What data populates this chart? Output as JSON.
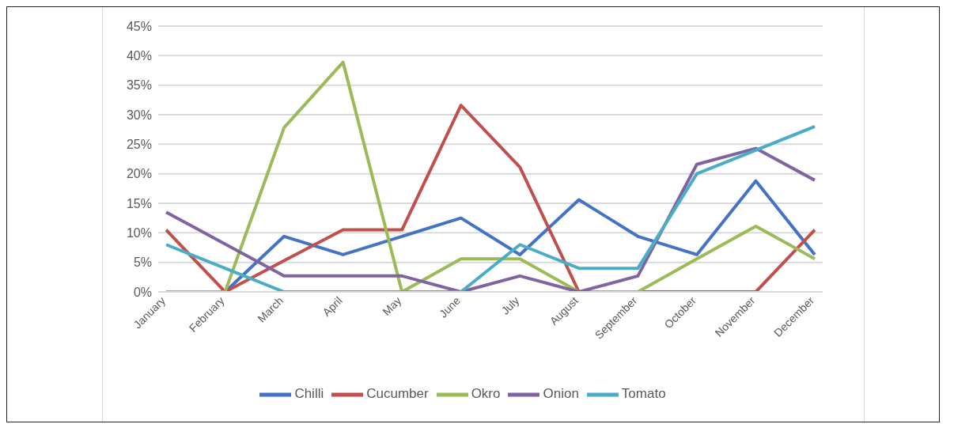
{
  "chart_data": {
    "type": "line",
    "categories": [
      "January",
      "February",
      "March",
      "April",
      "May",
      "June",
      "July",
      "August",
      "September",
      "October",
      "November",
      "December"
    ],
    "series": [
      {
        "name": "Chilli",
        "color": "#4472c4",
        "values": [
          0,
          0,
          9.4,
          6.3,
          9.4,
          12.5,
          6.3,
          15.6,
          9.4,
          6.3,
          18.8,
          6.3
        ]
      },
      {
        "name": "Cucumber",
        "color": "#c0504d",
        "values": [
          10.5,
          0,
          5.3,
          10.5,
          10.5,
          31.6,
          21.1,
          0,
          0,
          0,
          0,
          10.5
        ]
      },
      {
        "name": "Okro",
        "color": "#9bbb59",
        "values": [
          0,
          0,
          27.8,
          38.9,
          0,
          5.6,
          5.6,
          0,
          0,
          5.6,
          11.1,
          5.6
        ]
      },
      {
        "name": "Onion",
        "color": "#8064a2",
        "values": [
          13.5,
          8.1,
          2.7,
          2.7,
          2.7,
          0,
          2.7,
          0,
          2.7,
          21.6,
          24.3,
          18.9
        ]
      },
      {
        "name": "Tomato",
        "color": "#4bacc6",
        "values": [
          8,
          4,
          0,
          0,
          0,
          0,
          8,
          4,
          4,
          20,
          24,
          28
        ]
      }
    ],
    "ylim": [
      0,
      45
    ],
    "yticks": [
      {
        "value": 0,
        "label": "0%"
      },
      {
        "value": 5,
        "label": "5%"
      },
      {
        "value": 10,
        "label": "10%"
      },
      {
        "value": 15,
        "label": "15%"
      },
      {
        "value": 20,
        "label": "20%"
      },
      {
        "value": 25,
        "label": "25%"
      },
      {
        "value": 30,
        "label": "30%"
      },
      {
        "value": 35,
        "label": "35%"
      },
      {
        "value": 40,
        "label": "40%"
      },
      {
        "value": 45,
        "label": "45%"
      }
    ],
    "grid": "y",
    "legend": "bottom",
    "marker": "none",
    "line_style": "solid"
  }
}
